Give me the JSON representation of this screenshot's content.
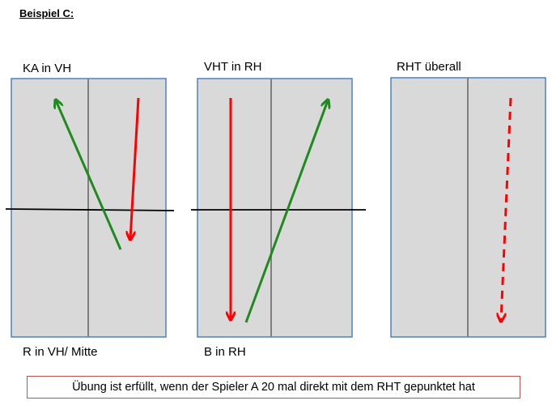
{
  "heading": "Beispiel C:",
  "panels": [
    {
      "top_label": "KA in VH",
      "bottom_label": "R in VH/ Mitte"
    },
    {
      "top_label": "VHT in RH",
      "bottom_label": "B in RH"
    },
    {
      "top_label": "RHT überall",
      "bottom_label": ""
    }
  ],
  "note": "Übung ist erfüllt, wenn der Spieler A 20 mal direkt mit dem RHT gepunktet hat",
  "colors": {
    "court_fill": "#d9d9d9",
    "court_border": "#4f81bd",
    "center_line": "#7f7f7f",
    "cross_line": "#000000",
    "arrow_green": "#1f8b1f",
    "arrow_red": "#ff0000",
    "note_border": "#c0504d"
  }
}
